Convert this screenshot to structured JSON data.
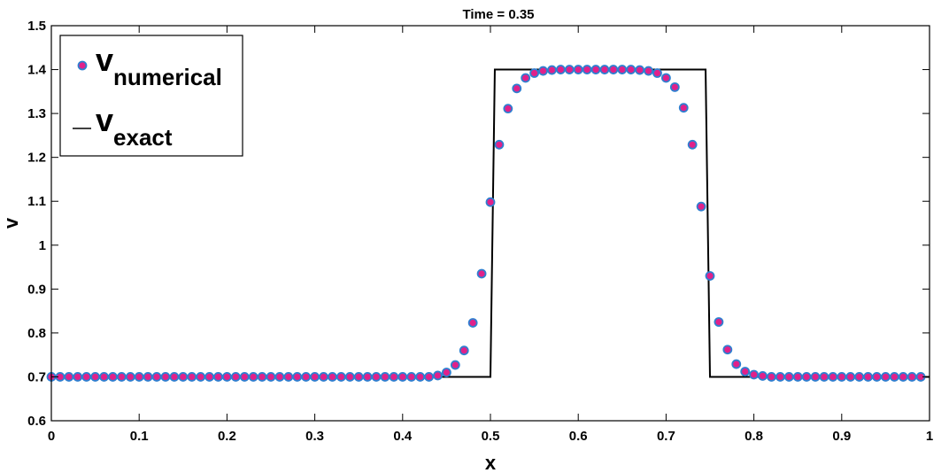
{
  "chart_data": {
    "type": "scatter",
    "title": "Time = 0.35",
    "xlabel": "x",
    "ylabel": "v",
    "xlim": [
      0,
      1
    ],
    "ylim": [
      0.6,
      1.5
    ],
    "x_ticks": [
      "0",
      "0.1",
      "0.2",
      "0.3",
      "0.4",
      "0.5",
      "0.6",
      "0.7",
      "0.8",
      "0.9",
      "1"
    ],
    "y_ticks": [
      "0.6",
      "0.7",
      "0.8",
      "0.9",
      "1",
      "1.1",
      "1.2",
      "1.3",
      "1.4",
      "1.5"
    ],
    "grid": false,
    "legend_position": "top-left",
    "legend": {
      "numerical": {
        "base": "v",
        "sub": "numerical"
      },
      "exact": {
        "base": "v",
        "sub": "exact"
      }
    },
    "colors": {
      "marker_fill": "#e0218a",
      "marker_edge": "#2f7fd0",
      "line": "#000000"
    },
    "series": [
      {
        "kind": "markers",
        "x": [
          0,
          0.01,
          0.02,
          0.03,
          0.04,
          0.05,
          0.06,
          0.07,
          0.08,
          0.09,
          0.1,
          0.11,
          0.12,
          0.13,
          0.14,
          0.15,
          0.16,
          0.17,
          0.18,
          0.19,
          0.2,
          0.21,
          0.22,
          0.23,
          0.24,
          0.25,
          0.26,
          0.27,
          0.28,
          0.29,
          0.3,
          0.31,
          0.32,
          0.33,
          0.34,
          0.35,
          0.36,
          0.37,
          0.38,
          0.39,
          0.4,
          0.41,
          0.42,
          0.43,
          0.44,
          0.45,
          0.46,
          0.47,
          0.48,
          0.49,
          0.5,
          0.51,
          0.52,
          0.53,
          0.54,
          0.55,
          0.56,
          0.57,
          0.58,
          0.59,
          0.6,
          0.61,
          0.62,
          0.63,
          0.64,
          0.65,
          0.66,
          0.67,
          0.68,
          0.69,
          0.7,
          0.71,
          0.72,
          0.73,
          0.74,
          0.75,
          0.76,
          0.77,
          0.78,
          0.79,
          0.8,
          0.81,
          0.82,
          0.83,
          0.84,
          0.85,
          0.86,
          0.87,
          0.88,
          0.89,
          0.9,
          0.91,
          0.92,
          0.93,
          0.94,
          0.95,
          0.96,
          0.97,
          0.98,
          0.99
        ],
        "y": [
          0.7,
          0.7,
          0.7,
          0.7,
          0.7,
          0.7,
          0.7,
          0.7,
          0.7,
          0.7,
          0.7,
          0.7,
          0.7,
          0.7,
          0.7,
          0.7,
          0.7,
          0.7,
          0.7,
          0.7,
          0.7,
          0.7,
          0.7,
          0.7,
          0.7,
          0.7,
          0.7,
          0.7,
          0.7,
          0.7,
          0.7,
          0.7,
          0.7,
          0.7,
          0.7,
          0.7,
          0.7,
          0.7,
          0.7,
          0.7,
          0.7,
          0.7,
          0.7,
          0.7,
          0.703,
          0.71,
          0.727,
          0.76,
          0.823,
          0.935,
          1.098,
          1.229,
          1.311,
          1.357,
          1.381,
          1.392,
          1.397,
          1.399,
          1.4,
          1.4,
          1.4,
          1.4,
          1.4,
          1.4,
          1.4,
          1.4,
          1.4,
          1.399,
          1.397,
          1.392,
          1.381,
          1.36,
          1.313,
          1.229,
          1.088,
          0.93,
          0.825,
          0.762,
          0.729,
          0.712,
          0.705,
          0.702,
          0.7,
          0.7,
          0.7,
          0.7,
          0.7,
          0.7,
          0.7,
          0.7,
          0.7,
          0.7,
          0.7,
          0.7,
          0.7,
          0.7,
          0.7,
          0.7,
          0.7,
          0.7
        ]
      },
      {
        "kind": "line",
        "x": [
          0,
          0.5,
          0.505,
          0.745,
          0.75,
          1
        ],
        "y": [
          0.7,
          0.7,
          1.4,
          1.4,
          0.7,
          0.7
        ]
      }
    ]
  }
}
